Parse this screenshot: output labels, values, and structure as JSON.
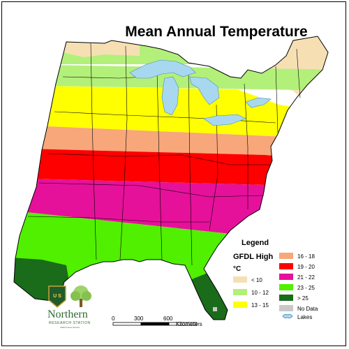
{
  "title": "Mean Annual Temperature",
  "legend": {
    "title": "Legend",
    "subtitle": "GFDL High",
    "unit": "°C",
    "classes": [
      {
        "label": "< 10",
        "color": "#f7dfb4"
      },
      {
        "label": "10 - 12",
        "color": "#b3f07a"
      },
      {
        "label": "13 - 15",
        "color": "#ffff00"
      },
      {
        "label": "16 - 18",
        "color": "#f7a77a"
      },
      {
        "label": "19 - 20",
        "color": "#ff0000"
      },
      {
        "label": "21 - 22",
        "color": "#e6119a"
      },
      {
        "label": "23 - 25",
        "color": "#50f000"
      },
      {
        "label": "> 25",
        "color": "#1a6b1a"
      },
      {
        "label": "No Data",
        "color": "#c8c8c8"
      },
      {
        "label": "Lakes",
        "color": "#a8d8f0"
      }
    ]
  },
  "scale": {
    "ticks": [
      "0",
      "300",
      "600"
    ],
    "unit": "Kilometers"
  },
  "logo": {
    "name": "Northern",
    "subtitle": "RESEARCH STATION",
    "agency": "USDA Forest Service",
    "shield_text": "U S"
  }
}
